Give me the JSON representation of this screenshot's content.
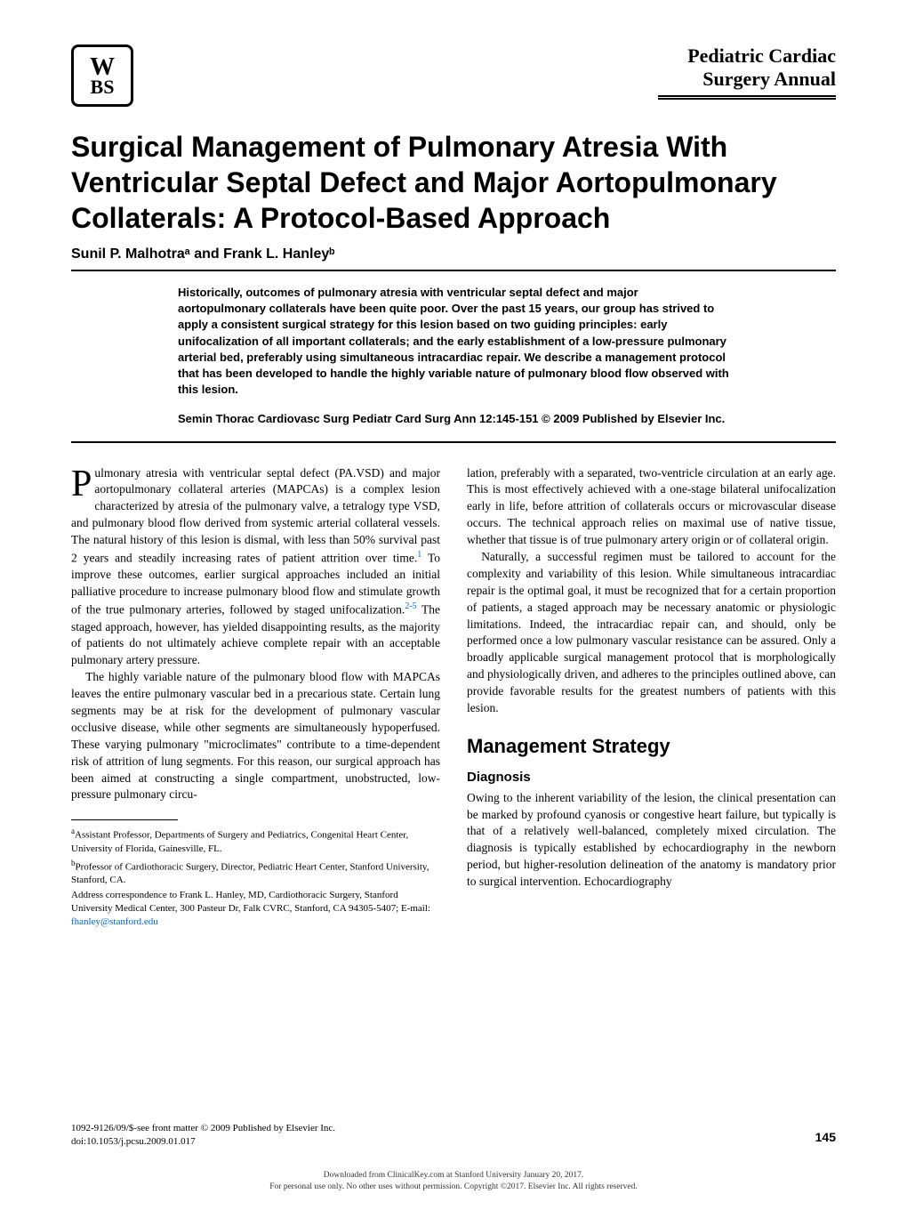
{
  "header": {
    "logo_top": "W",
    "logo_bottom": "BS",
    "journal_line1": "Pediatric Cardiac",
    "journal_line2": "Surgery Annual"
  },
  "title": "Surgical Management of Pulmonary Atresia With Ventricular Septal Defect and Major Aortopulmonary Collaterals: A Protocol-Based Approach",
  "authors": "Sunil P. Malhotraᵃ and Frank L. Hanleyᵇ",
  "abstract": "Historically, outcomes of pulmonary atresia with ventricular septal defect and major aortopulmonary collaterals have been quite poor. Over the past 15 years, our group has strived to apply a consistent surgical strategy for this lesion based on two guiding principles: early unifocalization of all important collaterals; and the early establishment of a low-pressure pulmonary arterial bed, preferably using simultaneous intracardiac repair. We describe a management protocol that has been developed to handle the highly variable nature of pulmonary blood flow observed with this lesion.",
  "citation": "Semin Thorac Cardiovasc Surg Pediatr Card Surg Ann 12:145-151 © 2009 Published by Elsevier Inc.",
  "col1": {
    "p1_dropcap": "P",
    "p1": "ulmonary atresia with ventricular septal defect (PA.VSD) and major aortopulmonary collateral arteries (MAPCAs) is a complex lesion characterized by atresia of the pulmonary valve, a tetralogy type VSD, and pulmonary blood flow derived from systemic arterial collateral vessels. The natural history of this lesion is dismal, with less than 50% survival past 2 years and steadily increasing rates of patient attrition over time.",
    "ref1": "1",
    "p1b": " To improve these outcomes, earlier surgical approaches included an initial palliative procedure to increase pulmonary blood flow and stimulate growth of the true pulmonary arteries, followed by staged unifocalization.",
    "ref2": "2-5",
    "p1c": " The staged approach, however, has yielded disappointing results, as the majority of patients do not ultimately achieve complete repair with an acceptable pulmonary artery pressure.",
    "p2": "The highly variable nature of the pulmonary blood flow with MAPCAs leaves the entire pulmonary vascular bed in a precarious state. Certain lung segments may be at risk for the development of pulmonary vascular occlusive disease, while other segments are simultaneously hypoperfused. These varying pulmonary \"microclimates\" contribute to a time-dependent risk of attrition of lung segments. For this reason, our surgical approach has been aimed at constructing a single compartment, unobstructed, low-pressure pulmonary circu-"
  },
  "footnotes": {
    "f1_sup": "a",
    "f1": "Assistant Professor, Departments of Surgery and Pediatrics, Congenital Heart Center, University of Florida, Gainesville, FL.",
    "f2_sup": "b",
    "f2": "Professor of Cardiothoracic Surgery, Director, Pediatric Heart Center, Stanford University, Stanford, CA.",
    "f3": "Address correspondence to Frank L. Hanley, MD, Cardiothoracic Surgery, Stanford University Medical Center, 300 Pasteur Dr, Falk CVRC, Stanford, CA 94305-5407; E-mail: ",
    "email": "fhanley@stanford.edu"
  },
  "col2": {
    "p1": "lation, preferably with a separated, two-ventricle circulation at an early age. This is most effectively achieved with a one-stage bilateral unifocalization early in life, before attrition of collaterals occurs or microvascular disease occurs. The technical approach relies on maximal use of native tissue, whether that tissue is of true pulmonary artery origin or of collateral origin.",
    "p2": "Naturally, a successful regimen must be tailored to account for the complexity and variability of this lesion. While simultaneous intracardiac repair is the optimal goal, it must be recognized that for a certain proportion of patients, a staged approach may be necessary anatomic or physiologic limitations. Indeed, the intracardiac repair can, and should, only be performed once a low pulmonary vascular resistance can be assured. Only a broadly applicable surgical management protocol that is morphologically and physiologically driven, and adheres to the principles outlined above, can provide favorable results for the greatest numbers of patients with this lesion.",
    "section": "Management Strategy",
    "subsection": "Diagnosis",
    "p3": "Owing to the inherent variability of the lesion, the clinical presentation can be marked by profound cyanosis or congestive heart failure, but typically is that of a relatively well-balanced, completely mixed circulation. The diagnosis is typically established by echocardiography in the newborn period, but higher-resolution delineation of the anatomy is mandatory prior to surgical intervention. Echocardiography"
  },
  "footer": {
    "copyright": "1092-9126/09/$-see front matter © 2009 Published by Elsevier Inc.",
    "doi": "doi:10.1053/j.pcsu.2009.01.017",
    "page": "145",
    "download1": "Downloaded from ClinicalKey.com at Stanford University January 20, 2017.",
    "download2": "For personal use only. No other uses without permission. Copyright ©2017. Elsevier Inc. All rights reserved."
  }
}
